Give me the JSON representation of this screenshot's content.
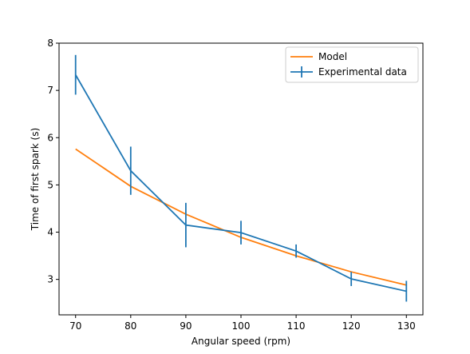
{
  "chart_data": {
    "type": "line",
    "title": "",
    "xlabel": "Angular speed (rpm)",
    "ylabel": "Time of first spark (s)",
    "xlim": [
      67,
      133
    ],
    "ylim": [
      2.25,
      8
    ],
    "xticks": [
      70,
      80,
      90,
      100,
      110,
      120,
      130
    ],
    "yticks": [
      3,
      4,
      5,
      6,
      7,
      8
    ],
    "grid": false,
    "legend_position": "top-right",
    "series": [
      {
        "name": "Model",
        "color": "#ff7f0e",
        "x": [
          70,
          80,
          90,
          100,
          110,
          120,
          130
        ],
        "y": [
          5.76,
          4.97,
          4.38,
          3.89,
          3.5,
          3.16,
          2.88
        ]
      },
      {
        "name": "Experimental data",
        "color": "#1f77b4",
        "x": [
          70,
          80,
          90,
          100,
          110,
          120,
          130
        ],
        "y": [
          7.33,
          5.3,
          4.15,
          3.99,
          3.6,
          3.01,
          2.75
        ],
        "yerr": [
          0.42,
          0.51,
          0.47,
          0.25,
          0.14,
          0.15,
          0.22
        ]
      }
    ]
  }
}
